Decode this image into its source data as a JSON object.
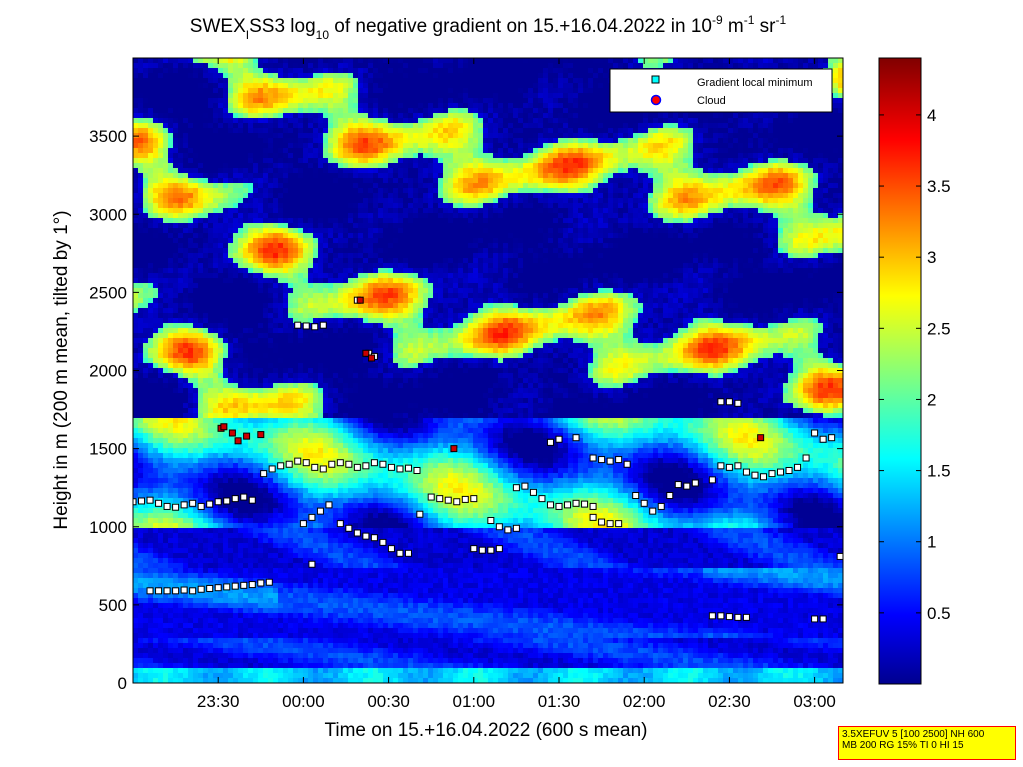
{
  "chart_data": {
    "type": "heatmap",
    "title_parts": {
      "base": "SWEX",
      "sub1": "I",
      "mid": "SS3 log",
      "sub2": "10",
      "text": " of negative gradient on 15.+16.04.2022 in 10",
      "sup1": "-9",
      "unit1": " m",
      "sup2": "-1",
      "unit2": " sr",
      "sup3": "-1"
    },
    "xlabel": "Time on 15.+16.04.2022 (600 s mean)",
    "ylabel": "Height in m (200 m mean, tilted by 1°)",
    "xlim": [
      "23:00",
      "03:10"
    ],
    "ylim": [
      0,
      4000
    ],
    "x_ticks": [
      "23:30",
      "00:00",
      "00:30",
      "01:00",
      "01:30",
      "02:00",
      "02:30",
      "03:00"
    ],
    "y_ticks": [
      0,
      500,
      1000,
      1500,
      2000,
      2500,
      3000,
      3500
    ],
    "colorbar": {
      "ticks": [
        0.5,
        1,
        1.5,
        2,
        2.5,
        3,
        3.5,
        4
      ],
      "range": [
        0,
        4.4
      ],
      "colormap": "jet"
    },
    "legend": {
      "position": "top-right",
      "entries": [
        {
          "label": "Gradient local minimum",
          "marker": "square",
          "color": "#00ffff"
        },
        {
          "label": "Cloud",
          "marker": "circle",
          "color": "#ff0000"
        }
      ]
    },
    "series": [
      {
        "name": "Gradient local minimum",
        "points": [
          [
            "23:00",
            1160
          ],
          [
            "23:03",
            1165
          ],
          [
            "23:06",
            1170
          ],
          [
            "23:09",
            1150
          ],
          [
            "23:12",
            1130
          ],
          [
            "23:15",
            1125
          ],
          [
            "23:18",
            1140
          ],
          [
            "23:21",
            1150
          ],
          [
            "23:24",
            1130
          ],
          [
            "23:27",
            1145
          ],
          [
            "23:30",
            1160
          ],
          [
            "23:33",
            1165
          ],
          [
            "23:36",
            1180
          ],
          [
            "23:39",
            1190
          ],
          [
            "23:42",
            1170
          ],
          [
            "23:06",
            590
          ],
          [
            "23:09",
            590
          ],
          [
            "23:12",
            590
          ],
          [
            "23:15",
            590
          ],
          [
            "23:18",
            595
          ],
          [
            "23:21",
            590
          ],
          [
            "23:24",
            600
          ],
          [
            "23:27",
            605
          ],
          [
            "23:30",
            610
          ],
          [
            "23:33",
            615
          ],
          [
            "23:36",
            620
          ],
          [
            "23:39",
            625
          ],
          [
            "23:42",
            630
          ],
          [
            "23:45",
            640
          ],
          [
            "23:48",
            645
          ],
          [
            "23:46",
            1340
          ],
          [
            "23:49",
            1370
          ],
          [
            "23:52",
            1390
          ],
          [
            "23:55",
            1400
          ],
          [
            "23:58",
            1420
          ],
          [
            "00:01",
            1410
          ],
          [
            "00:04",
            1380
          ],
          [
            "00:07",
            1370
          ],
          [
            "00:10",
            1400
          ],
          [
            "00:13",
            1410
          ],
          [
            "00:16",
            1400
          ],
          [
            "00:19",
            1380
          ],
          [
            "00:22",
            1390
          ],
          [
            "00:25",
            1410
          ],
          [
            "00:28",
            1400
          ],
          [
            "00:31",
            1380
          ],
          [
            "00:34",
            1370
          ],
          [
            "00:37",
            1375
          ],
          [
            "00:40",
            1360
          ],
          [
            "23:58",
            2290
          ],
          [
            "00:01",
            2285
          ],
          [
            "00:04",
            2280
          ],
          [
            "00:07",
            2290
          ],
          [
            "00:19",
            2450
          ],
          [
            "00:23",
            2110
          ],
          [
            "00:25",
            2090
          ],
          [
            "00:00",
            1020
          ],
          [
            "00:03",
            1060
          ],
          [
            "00:06",
            1100
          ],
          [
            "00:09",
            1140
          ],
          [
            "00:03",
            760
          ],
          [
            "00:13",
            1020
          ],
          [
            "00:16",
            990
          ],
          [
            "00:19",
            960
          ],
          [
            "00:22",
            940
          ],
          [
            "00:25",
            930
          ],
          [
            "00:28",
            900
          ],
          [
            "00:31",
            860
          ],
          [
            "00:34",
            830
          ],
          [
            "00:37",
            830
          ],
          [
            "00:41",
            1080
          ],
          [
            "00:45",
            1190
          ],
          [
            "00:48",
            1180
          ],
          [
            "00:51",
            1170
          ],
          [
            "00:54",
            1160
          ],
          [
            "00:57",
            1175
          ],
          [
            "01:00",
            1180
          ],
          [
            "01:00",
            860
          ],
          [
            "01:03",
            850
          ],
          [
            "01:06",
            850
          ],
          [
            "01:09",
            860
          ],
          [
            "01:06",
            1040
          ],
          [
            "01:09",
            1000
          ],
          [
            "01:12",
            980
          ],
          [
            "01:15",
            990
          ],
          [
            "01:15",
            1250
          ],
          [
            "01:18",
            1260
          ],
          [
            "01:21",
            1220
          ],
          [
            "01:24",
            1180
          ],
          [
            "01:27",
            1140
          ],
          [
            "01:30",
            1130
          ],
          [
            "01:33",
            1140
          ],
          [
            "01:36",
            1150
          ],
          [
            "01:39",
            1145
          ],
          [
            "01:42",
            1130
          ],
          [
            "01:27",
            1540
          ],
          [
            "01:30",
            1560
          ],
          [
            "01:36",
            1570
          ],
          [
            "01:42",
            1440
          ],
          [
            "01:45",
            1430
          ],
          [
            "01:48",
            1420
          ],
          [
            "01:51",
            1430
          ],
          [
            "01:54",
            1400
          ],
          [
            "01:42",
            1060
          ],
          [
            "01:45",
            1030
          ],
          [
            "01:48",
            1020
          ],
          [
            "01:51",
            1020
          ],
          [
            "01:57",
            1200
          ],
          [
            "02:00",
            1150
          ],
          [
            "02:03",
            1100
          ],
          [
            "02:06",
            1130
          ],
          [
            "02:09",
            1200
          ],
          [
            "02:12",
            1270
          ],
          [
            "02:15",
            1260
          ],
          [
            "02:18",
            1280
          ],
          [
            "02:24",
            1300
          ],
          [
            "02:27",
            1390
          ],
          [
            "02:30",
            1380
          ],
          [
            "02:33",
            1390
          ],
          [
            "02:36",
            1350
          ],
          [
            "02:39",
            1330
          ],
          [
            "02:42",
            1320
          ],
          [
            "02:45",
            1340
          ],
          [
            "02:48",
            1350
          ],
          [
            "02:51",
            1360
          ],
          [
            "02:54",
            1380
          ],
          [
            "02:57",
            1440
          ],
          [
            "03:00",
            1600
          ],
          [
            "03:03",
            1560
          ],
          [
            "03:06",
            1570
          ],
          [
            "02:27",
            1800
          ],
          [
            "02:30",
            1800
          ],
          [
            "02:33",
            1790
          ],
          [
            "02:24",
            430
          ],
          [
            "02:27",
            430
          ],
          [
            "02:30",
            425
          ],
          [
            "02:33",
            420
          ],
          [
            "02:36",
            420
          ],
          [
            "03:00",
            410
          ],
          [
            "03:03",
            410
          ],
          [
            "03:09",
            810
          ]
        ]
      },
      {
        "name": "Cloud",
        "points": [
          [
            "23:31",
            1630
          ],
          [
            "23:32",
            1640
          ],
          [
            "23:35",
            1600
          ],
          [
            "23:37",
            1550
          ],
          [
            "23:40",
            1580
          ],
          [
            "23:45",
            1590
          ],
          [
            "00:20",
            2450
          ],
          [
            "00:22",
            2110
          ],
          [
            "00:24",
            2080
          ],
          [
            "00:53",
            1500
          ],
          [
            "02:41",
            1570
          ]
        ]
      }
    ]
  },
  "info_box": {
    "line1": "3.5XEFUV 5 [100 2500] NH 600",
    "line2": "MB 200 RG 15% TI 0 HI 15"
  }
}
